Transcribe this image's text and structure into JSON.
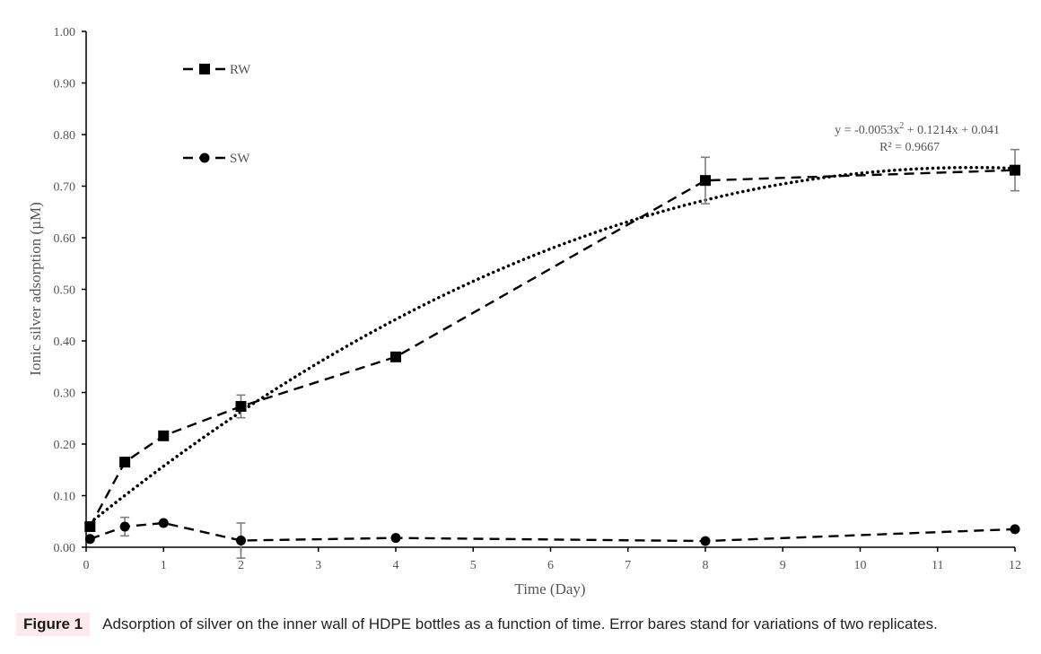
{
  "chart_data": {
    "type": "line",
    "xlabel": "Time (Day)",
    "ylabel": "Ionic silver adsorption (µM)",
    "xlim": [
      0,
      12
    ],
    "ylim": [
      0,
      1.0
    ],
    "x_ticks": [
      "0",
      "1",
      "2",
      "3",
      "4",
      "5",
      "6",
      "7",
      "8",
      "9",
      "10",
      "11",
      "12"
    ],
    "y_ticks": [
      "0.00",
      "0.10",
      "0.20",
      "0.30",
      "0.40",
      "0.50",
      "0.60",
      "0.70",
      "0.80",
      "0.90",
      "1.00"
    ],
    "grid": false,
    "legend_position": "top-left",
    "series": [
      {
        "name": "RW",
        "marker": "square",
        "line_style": "dashed",
        "color": "#000000",
        "points": [
          {
            "x": 0.05,
            "y": 0.04,
            "err": 0
          },
          {
            "x": 0.5,
            "y": 0.165,
            "err": 0
          },
          {
            "x": 1,
            "y": 0.216,
            "err": 0
          },
          {
            "x": 2,
            "y": 0.273,
            "err": 0.022
          },
          {
            "x": 4,
            "y": 0.369,
            "err": 0.008
          },
          {
            "x": 8,
            "y": 0.711,
            "err": 0.045
          },
          {
            "x": 12,
            "y": 0.731,
            "err": 0.04
          }
        ]
      },
      {
        "name": "SW",
        "marker": "circle",
        "line_style": "dashed",
        "color": "#000000",
        "points": [
          {
            "x": 0.05,
            "y": 0.016,
            "err": 0
          },
          {
            "x": 0.5,
            "y": 0.04,
            "err": 0.018
          },
          {
            "x": 1,
            "y": 0.047,
            "err": 0
          },
          {
            "x": 2,
            "y": 0.013,
            "err": 0.034
          },
          {
            "x": 4,
            "y": 0.018,
            "err": 0
          },
          {
            "x": 8,
            "y": 0.012,
            "err": 0
          },
          {
            "x": 12,
            "y": 0.035,
            "err": 0
          }
        ]
      }
    ],
    "trendline": {
      "series": "RW",
      "type": "polynomial-2",
      "line_style": "dotted",
      "a": -0.0053,
      "b": 0.1214,
      "c": 0.041,
      "equation_prefix": "y = -0.0053x",
      "equation_sup": "2",
      "equation_suffix": " + 0.1214x + 0.041",
      "r2_label": "R² = 0.9667"
    }
  },
  "caption": {
    "tag": "Figure 1",
    "text": "Adsorption of silver on the inner wall of HDPE bottles as a function of time. Error bares stand for variations of two replicates."
  }
}
